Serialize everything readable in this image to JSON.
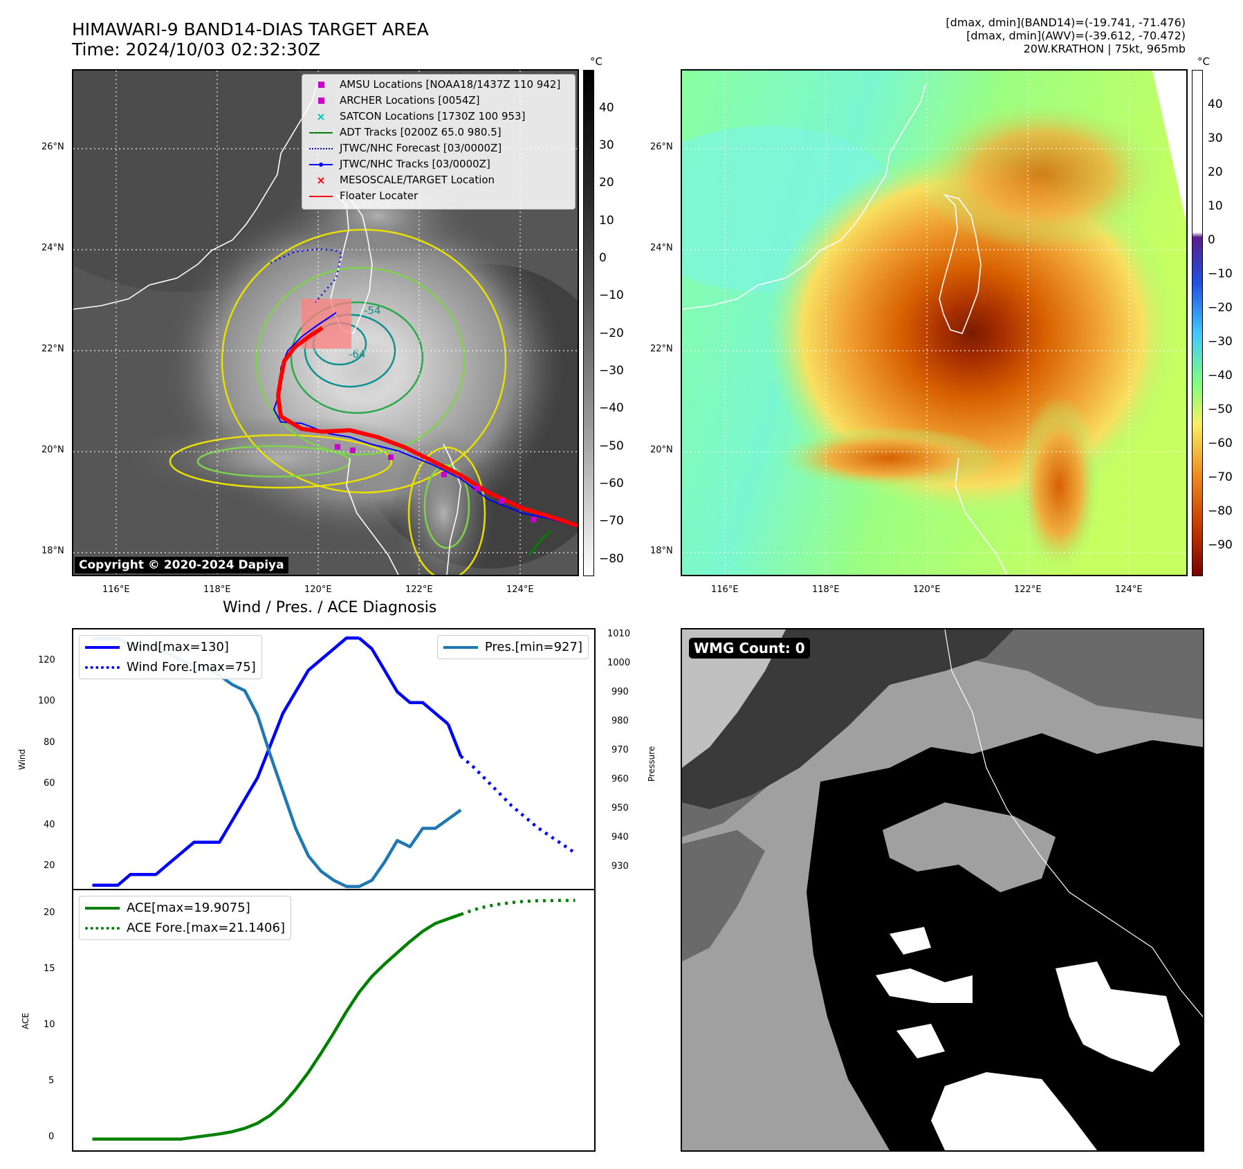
{
  "header": {
    "title_line1": "HIMAWARI-9 BAND14-DIAS TARGET AREA",
    "title_line2": "Time: 2024/10/03 02:32:30Z",
    "info_line1": "[dmax, dmin](BAND14)=(-19.741, -71.476)",
    "info_line2": "[dmax, dmin](AWV)=(-39.612, -70.472)",
    "info_line3": "20W.KRATHON | 75kt, 965mb"
  },
  "map_left": {
    "lat_labels": [
      "26°N",
      "24°N",
      "22°N",
      "20°N",
      "18°N"
    ],
    "lon_labels": [
      "116°E",
      "118°E",
      "120°E",
      "122°E",
      "124°E"
    ],
    "colorbar_unit": "°C",
    "colorbar_ticks": [
      "40",
      "30",
      "20",
      "10",
      "0",
      "−10",
      "−20",
      "−30",
      "−40",
      "−50",
      "−60",
      "−70",
      "−80"
    ],
    "contour_labels": [
      "-54",
      "-64"
    ],
    "copyright": "Copyright © 2020-2024 Dapiya",
    "legend": [
      {
        "label": "AMSU Locations [NOAA18/1437Z 110 942]",
        "symbol": "square",
        "color": "#c800c8"
      },
      {
        "label": "ARCHER Locations [0054Z]",
        "symbol": "square",
        "color": "#c800c8"
      },
      {
        "label": "SATCON Locations [1730Z 100 953]",
        "symbol": "x",
        "color": "#00bfbf"
      },
      {
        "label": "ADT Tracks [0200Z 65.0 980.5]",
        "symbol": "line",
        "color": "#008000"
      },
      {
        "label": "JTWC/NHC Forecast [03/0000Z]",
        "symbol": "dotted",
        "color": "#0000ff"
      },
      {
        "label": "JTWC/NHC Tracks [03/0000Z]",
        "symbol": "line-dot",
        "color": "#0000ff"
      },
      {
        "label": "MESOSCALE/TARGET Location",
        "symbol": "x",
        "color": "#ff0000"
      },
      {
        "label": "Floater Locater",
        "symbol": "line",
        "color": "#ff0000"
      }
    ]
  },
  "map_right": {
    "lat_labels": [
      "26°N",
      "24°N",
      "22°N",
      "20°N",
      "18°N"
    ],
    "lon_labels": [
      "116°E",
      "118°E",
      "120°E",
      "122°E",
      "124°E"
    ],
    "colorbar_unit": "°C",
    "colorbar_ticks": [
      "40",
      "30",
      "20",
      "10",
      "0",
      "−10",
      "−20",
      "−30",
      "−40",
      "−50",
      "−60",
      "−70",
      "−80",
      "−90"
    ]
  },
  "diagnosis": {
    "title": "Wind / Pres. / ACE Diagnosis",
    "wind_ylabel": "Wind",
    "pres_ylabel": "Pressure",
    "ace_ylabel": "ACE",
    "wind_ticks": [
      "120",
      "100",
      "80",
      "60",
      "40",
      "20"
    ],
    "pres_ticks": [
      "1010",
      "1000",
      "990",
      "980",
      "970",
      "960",
      "950",
      "940",
      "930"
    ],
    "ace_ticks": [
      "20",
      "15",
      "10",
      "5",
      "0"
    ],
    "legend_wind": "Wind[max=130]",
    "legend_wind_fore": "Wind Fore.[max=75]",
    "legend_pres": "Pres.[min=927]",
    "legend_ace": "ACE[max=19.9075]",
    "legend_ace_fore": "ACE Fore.[max=21.1406]"
  },
  "wmg": {
    "label": "WMG Count: 0"
  },
  "chart_data": [
    {
      "type": "line",
      "title": "Wind / Pres. / ACE Diagnosis",
      "ylabel": "Wind",
      "ylim": [
        13,
        134
      ],
      "series": [
        {
          "name": "Wind[max=130]",
          "color": "#0000ff",
          "style": "solid",
          "x": [
            0,
            1,
            2,
            3,
            4,
            5,
            6,
            7,
            8,
            9,
            10,
            11,
            12,
            13,
            14,
            15,
            16,
            17,
            18,
            19,
            20,
            21
          ],
          "values": [
            15,
            15,
            15,
            20,
            20,
            20,
            25,
            30,
            35,
            35,
            35,
            45,
            55,
            65,
            80,
            95,
            105,
            115,
            120,
            125,
            130,
            130
          ]
        },
        {
          "name": "",
          "color": "#0000ff",
          "style": "solid",
          "x": [
            21,
            22,
            23,
            24,
            25,
            26,
            27,
            28
          ],
          "values": [
            130,
            125,
            115,
            105,
            100,
            100,
            95,
            90
          ]
        },
        {
          "name": "",
          "color": "#0000ff",
          "style": "solid",
          "x": [
            28,
            29
          ],
          "values": [
            90,
            75
          ]
        },
        {
          "name": "Wind Fore.[max=75]",
          "color": "#0000ff",
          "style": "dotted",
          "x": [
            29,
            30,
            31,
            32,
            33,
            34,
            35,
            36,
            37,
            38
          ],
          "values": [
            75,
            70,
            64,
            58,
            52,
            47,
            42,
            38,
            34,
            30
          ]
        }
      ]
    },
    {
      "type": "line",
      "ylabel": "Pressure",
      "ylim": [
        926,
        1011
      ],
      "series": [
        {
          "name": "Pres.[min=927]",
          "color": "#1f77b4",
          "style": "solid",
          "x": [
            0,
            1,
            2,
            3,
            4,
            5,
            6,
            7,
            8,
            9,
            10,
            11,
            12,
            13,
            14,
            15,
            16,
            17,
            18,
            19,
            20,
            21,
            22,
            23,
            24,
            25,
            26,
            27,
            28,
            29
          ],
          "values": [
            1008,
            1008,
            1008,
            1006,
            1005,
            1005,
            1003,
            1001,
            999,
            999,
            996,
            993,
            991,
            983,
            970,
            958,
            946,
            937,
            932,
            929,
            927,
            927,
            929,
            935,
            942,
            940,
            946,
            946,
            949,
            952
          ]
        }
      ]
    },
    {
      "type": "line",
      "ylabel": "ACE",
      "ylim": [
        -1,
        22.1
      ],
      "series": [
        {
          "name": "ACE[max=19.9075]",
          "color": "#008000",
          "style": "solid",
          "x": [
            0,
            1,
            2,
            3,
            4,
            5,
            6,
            7,
            8,
            9,
            10,
            11,
            12,
            13,
            14,
            15,
            16,
            17,
            18,
            19,
            20,
            21,
            22,
            23,
            24,
            25,
            26,
            27,
            28,
            29
          ],
          "values": [
            0,
            0,
            0,
            0,
            0,
            0,
            0,
            0,
            0.15,
            0.3,
            0.45,
            0.65,
            0.95,
            1.4,
            2.1,
            3.1,
            4.4,
            5.9,
            7.6,
            9.4,
            11.3,
            13.0,
            14.4,
            15.5,
            16.5,
            17.5,
            18.4,
            19.1,
            19.5,
            19.9
          ]
        },
        {
          "name": "ACE Fore.[max=21.1406]",
          "color": "#008000",
          "style": "dotted",
          "x": [
            29,
            30,
            31,
            32,
            33,
            34,
            35,
            36,
            37,
            38
          ],
          "values": [
            19.9,
            20.3,
            20.6,
            20.8,
            20.95,
            21.05,
            21.1,
            21.12,
            21.14,
            21.14
          ]
        }
      ]
    }
  ]
}
